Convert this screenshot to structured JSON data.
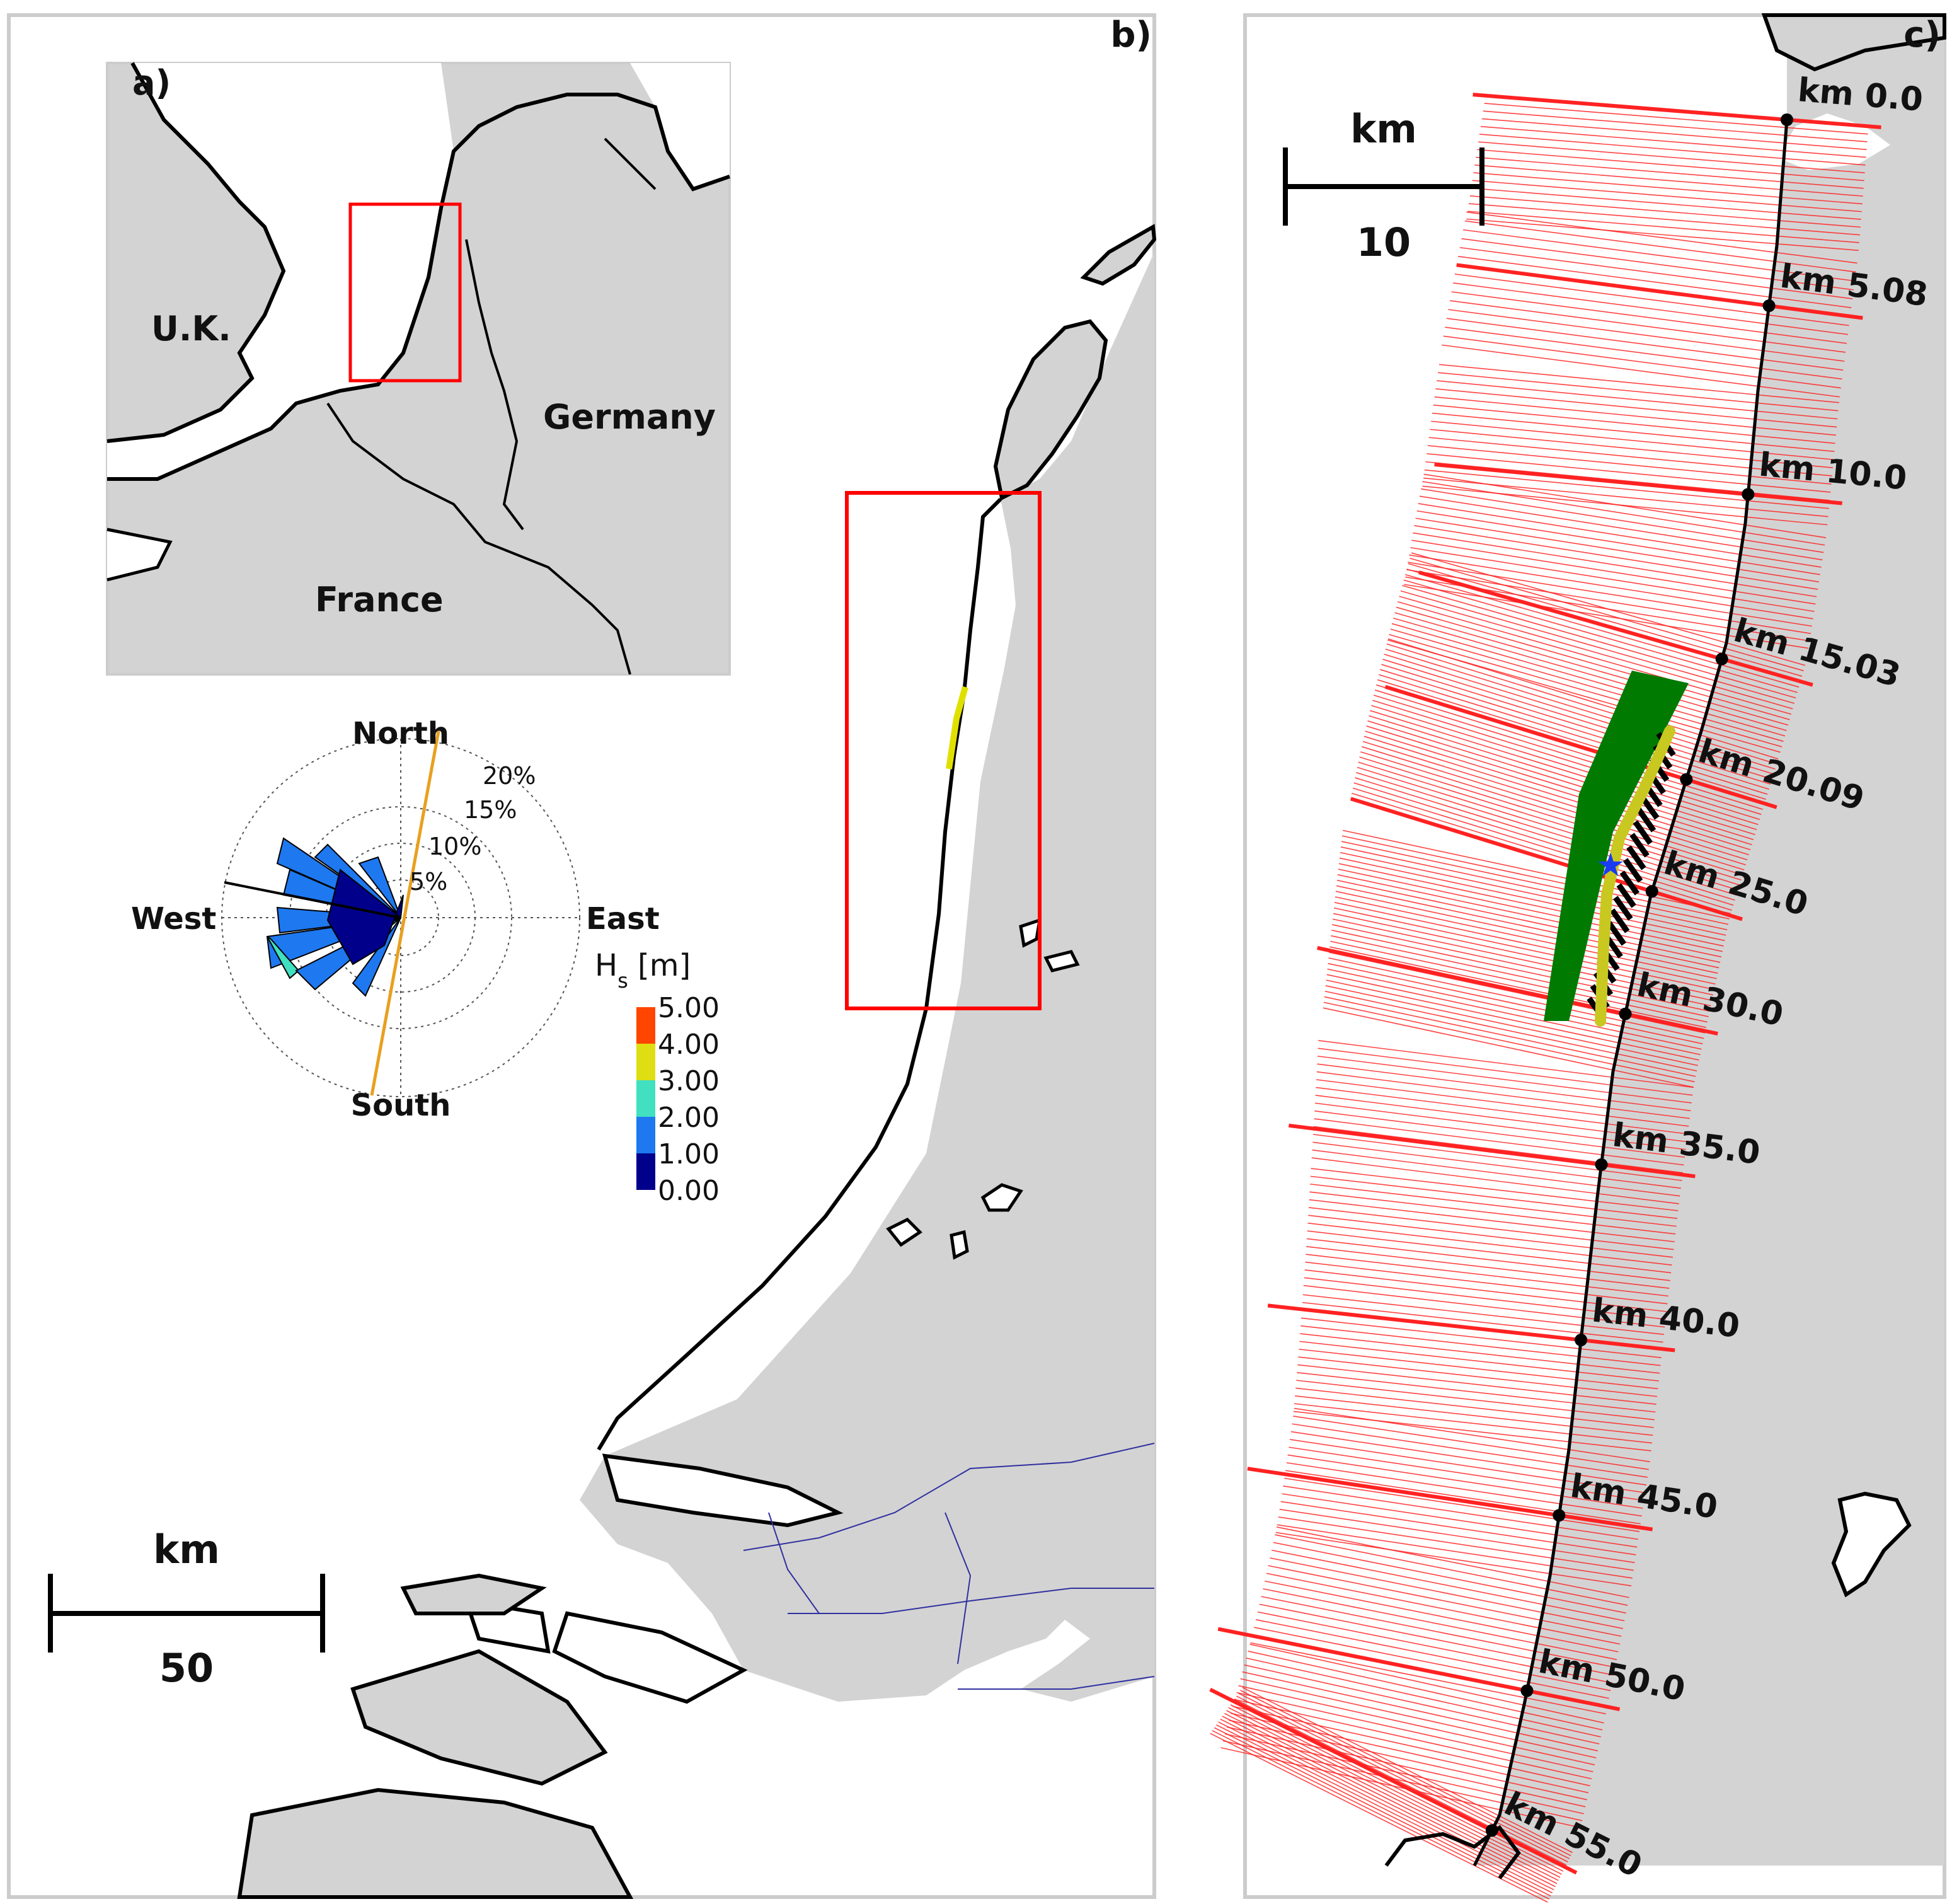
{
  "panels": {
    "a": {
      "label": "a)",
      "countries": [
        "U.K.",
        "Germany",
        "France"
      ]
    },
    "b": {
      "label": "b)",
      "scale_bar": {
        "unit": "km",
        "value": "50"
      }
    },
    "c": {
      "label": "c)",
      "scale_bar": {
        "unit": "km",
        "value": "10"
      }
    }
  },
  "wind_rose": {
    "directions": {
      "north": "North",
      "south": "South",
      "east": "East",
      "west": "West"
    },
    "rings": [
      "5%",
      "10%",
      "15%",
      "20%"
    ],
    "legend_title": "H",
    "legend_sub": "s",
    "legend_unit": " [m]",
    "legend_values": [
      "5.00",
      "4.00",
      "3.00",
      "2.00",
      "1.00",
      "0.00"
    ],
    "legend_colors": [
      "#ff4500",
      "#dede12",
      "#40e0c0",
      "#1e78f0",
      "#00008b"
    ]
  },
  "km_markers": [
    {
      "label": "km 0.0",
      "km": 0.0
    },
    {
      "label": "km 5.08",
      "km": 5.08
    },
    {
      "label": "km 10.0",
      "km": 10.0
    },
    {
      "label": "km 15.03",
      "km": 15.03
    },
    {
      "label": "km 20.09",
      "km": 20.09
    },
    {
      "label": "km 25.0",
      "km": 25.0
    },
    {
      "label": "km 30.0",
      "km": 30.0
    },
    {
      "label": "km 35.0",
      "km": 35.0
    },
    {
      "label": "km 40.0",
      "km": 40.0
    },
    {
      "label": "km 45.0",
      "km": 45.0
    },
    {
      "label": "km 50.0",
      "km": 50.0
    },
    {
      "label": "km 55.0",
      "km": 55.0
    }
  ],
  "colors": {
    "land": "#d3d3d3",
    "coast": "#000000",
    "transect": "#ff2222",
    "highlight": "#e0e000",
    "box": "#ff0000",
    "green_area": "#007a00",
    "orange_line": "#e8a020",
    "river": "#3030a0"
  }
}
